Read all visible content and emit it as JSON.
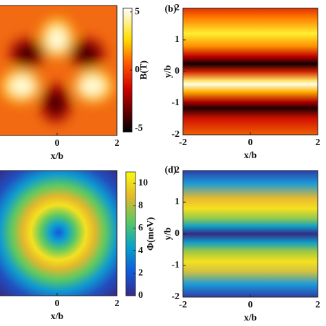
{
  "chart_data": [
    {
      "type": "heatmap",
      "xlabel": "x/b",
      "xlim": [
        -2,
        2
      ],
      "xticks": [
        0,
        2
      ],
      "colorbar": {
        "label": "B(T)",
        "lim": [
          -5.3,
          5.3
        ],
        "ticks": [
          -5,
          0,
          5
        ]
      }
    },
    {
      "type": "heatmap",
      "panel_label": "(b)",
      "xlabel": "x/b",
      "ylabel": "y/b",
      "xlim": [
        -2,
        2
      ],
      "xticks": [
        -2,
        0,
        2
      ],
      "ylim": [
        -2,
        2
      ],
      "yticks": [
        -2,
        -1,
        0,
        1,
        2
      ]
    },
    {
      "type": "heatmap",
      "xlabel": "x/b",
      "xlim": [
        -2,
        2
      ],
      "xticks": [
        0,
        2
      ],
      "colorbar": {
        "label": "Φ(meV)",
        "lim": [
          0,
          11
        ],
        "ticks": [
          0,
          2,
          4,
          6,
          8,
          10
        ]
      }
    },
    {
      "type": "heatmap",
      "panel_label": "(d)",
      "xlabel": "x/b",
      "ylabel": "y/b",
      "xlim": [
        -2,
        2
      ],
      "xticks": [
        -2,
        0,
        2
      ],
      "ylim": [
        -2,
        2
      ],
      "yticks": [
        -2,
        -1,
        0,
        1,
        2
      ]
    }
  ]
}
